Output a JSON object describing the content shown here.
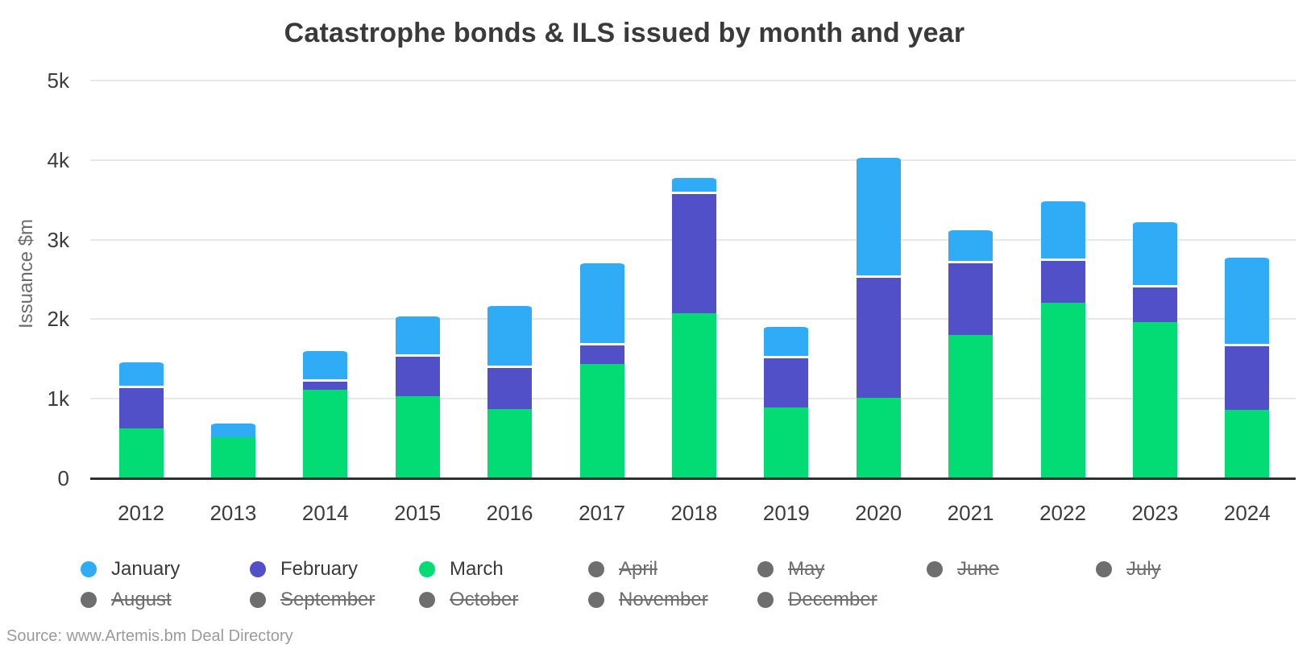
{
  "title": "Catastrophe bonds & ILS issued by month and year",
  "source": "Source: www.Artemis.bm Deal Directory",
  "colors": {
    "january": "#2facf5",
    "february": "#5250c9",
    "march": "#03dc74",
    "inactive": "#6e6e6e",
    "gridline": "#e7e7e7",
    "axis_line": "#2e2f33",
    "tick_text": "#3c3c3c",
    "title_text": "#3a3a3a"
  },
  "chart_data": {
    "type": "bar",
    "stacked": true,
    "title": "Catastrophe bonds & ILS issued by month and year",
    "xlabel": "",
    "ylabel": "Issuance $m",
    "ylim": [
      0,
      5000
    ],
    "yticks": [
      0,
      1000,
      2000,
      3000,
      4000,
      5000
    ],
    "ytick_labels": [
      "0",
      "1k",
      "2k",
      "3k",
      "4k",
      "5k"
    ],
    "grid": true,
    "legend_position": "bottom",
    "categories": [
      "2012",
      "2013",
      "2014",
      "2015",
      "2016",
      "2017",
      "2018",
      "2019",
      "2020",
      "2021",
      "2022",
      "2023",
      "2024"
    ],
    "series": [
      {
        "name": "January",
        "color": "#2facf5",
        "values": [
          325,
          200,
          390,
          505,
          775,
          1035,
          205,
          395,
          1510,
          410,
          750,
          820,
          1110
        ]
      },
      {
        "name": "February",
        "color": "#5250c9",
        "values": [
          535,
          0,
          125,
          525,
          550,
          265,
          1530,
          650,
          1535,
          935,
          555,
          470,
          830
        ]
      },
      {
        "name": "March",
        "color": "#03dc74",
        "values": [
          615,
          505,
          1105,
          1020,
          860,
          1425,
          2060,
          880,
          1005,
          1790,
          2195,
          1950,
          855
        ]
      }
    ],
    "totals": [
      1475,
      705,
      1620,
      2050,
      2185,
      2725,
      3795,
      1925,
      4050,
      3135,
      3500,
      3240,
      2795
    ],
    "stack_order_bottom_to_top": [
      "March",
      "February",
      "January"
    ],
    "legend_items": [
      {
        "label": "January",
        "active": true
      },
      {
        "label": "February",
        "active": true
      },
      {
        "label": "March",
        "active": true
      },
      {
        "label": "April",
        "active": false
      },
      {
        "label": "May",
        "active": false
      },
      {
        "label": "June",
        "active": false
      },
      {
        "label": "July",
        "active": false
      },
      {
        "label": "August",
        "active": false
      },
      {
        "label": "September",
        "active": false
      },
      {
        "label": "October",
        "active": false
      },
      {
        "label": "November",
        "active": false
      },
      {
        "label": "December",
        "active": false
      }
    ]
  }
}
